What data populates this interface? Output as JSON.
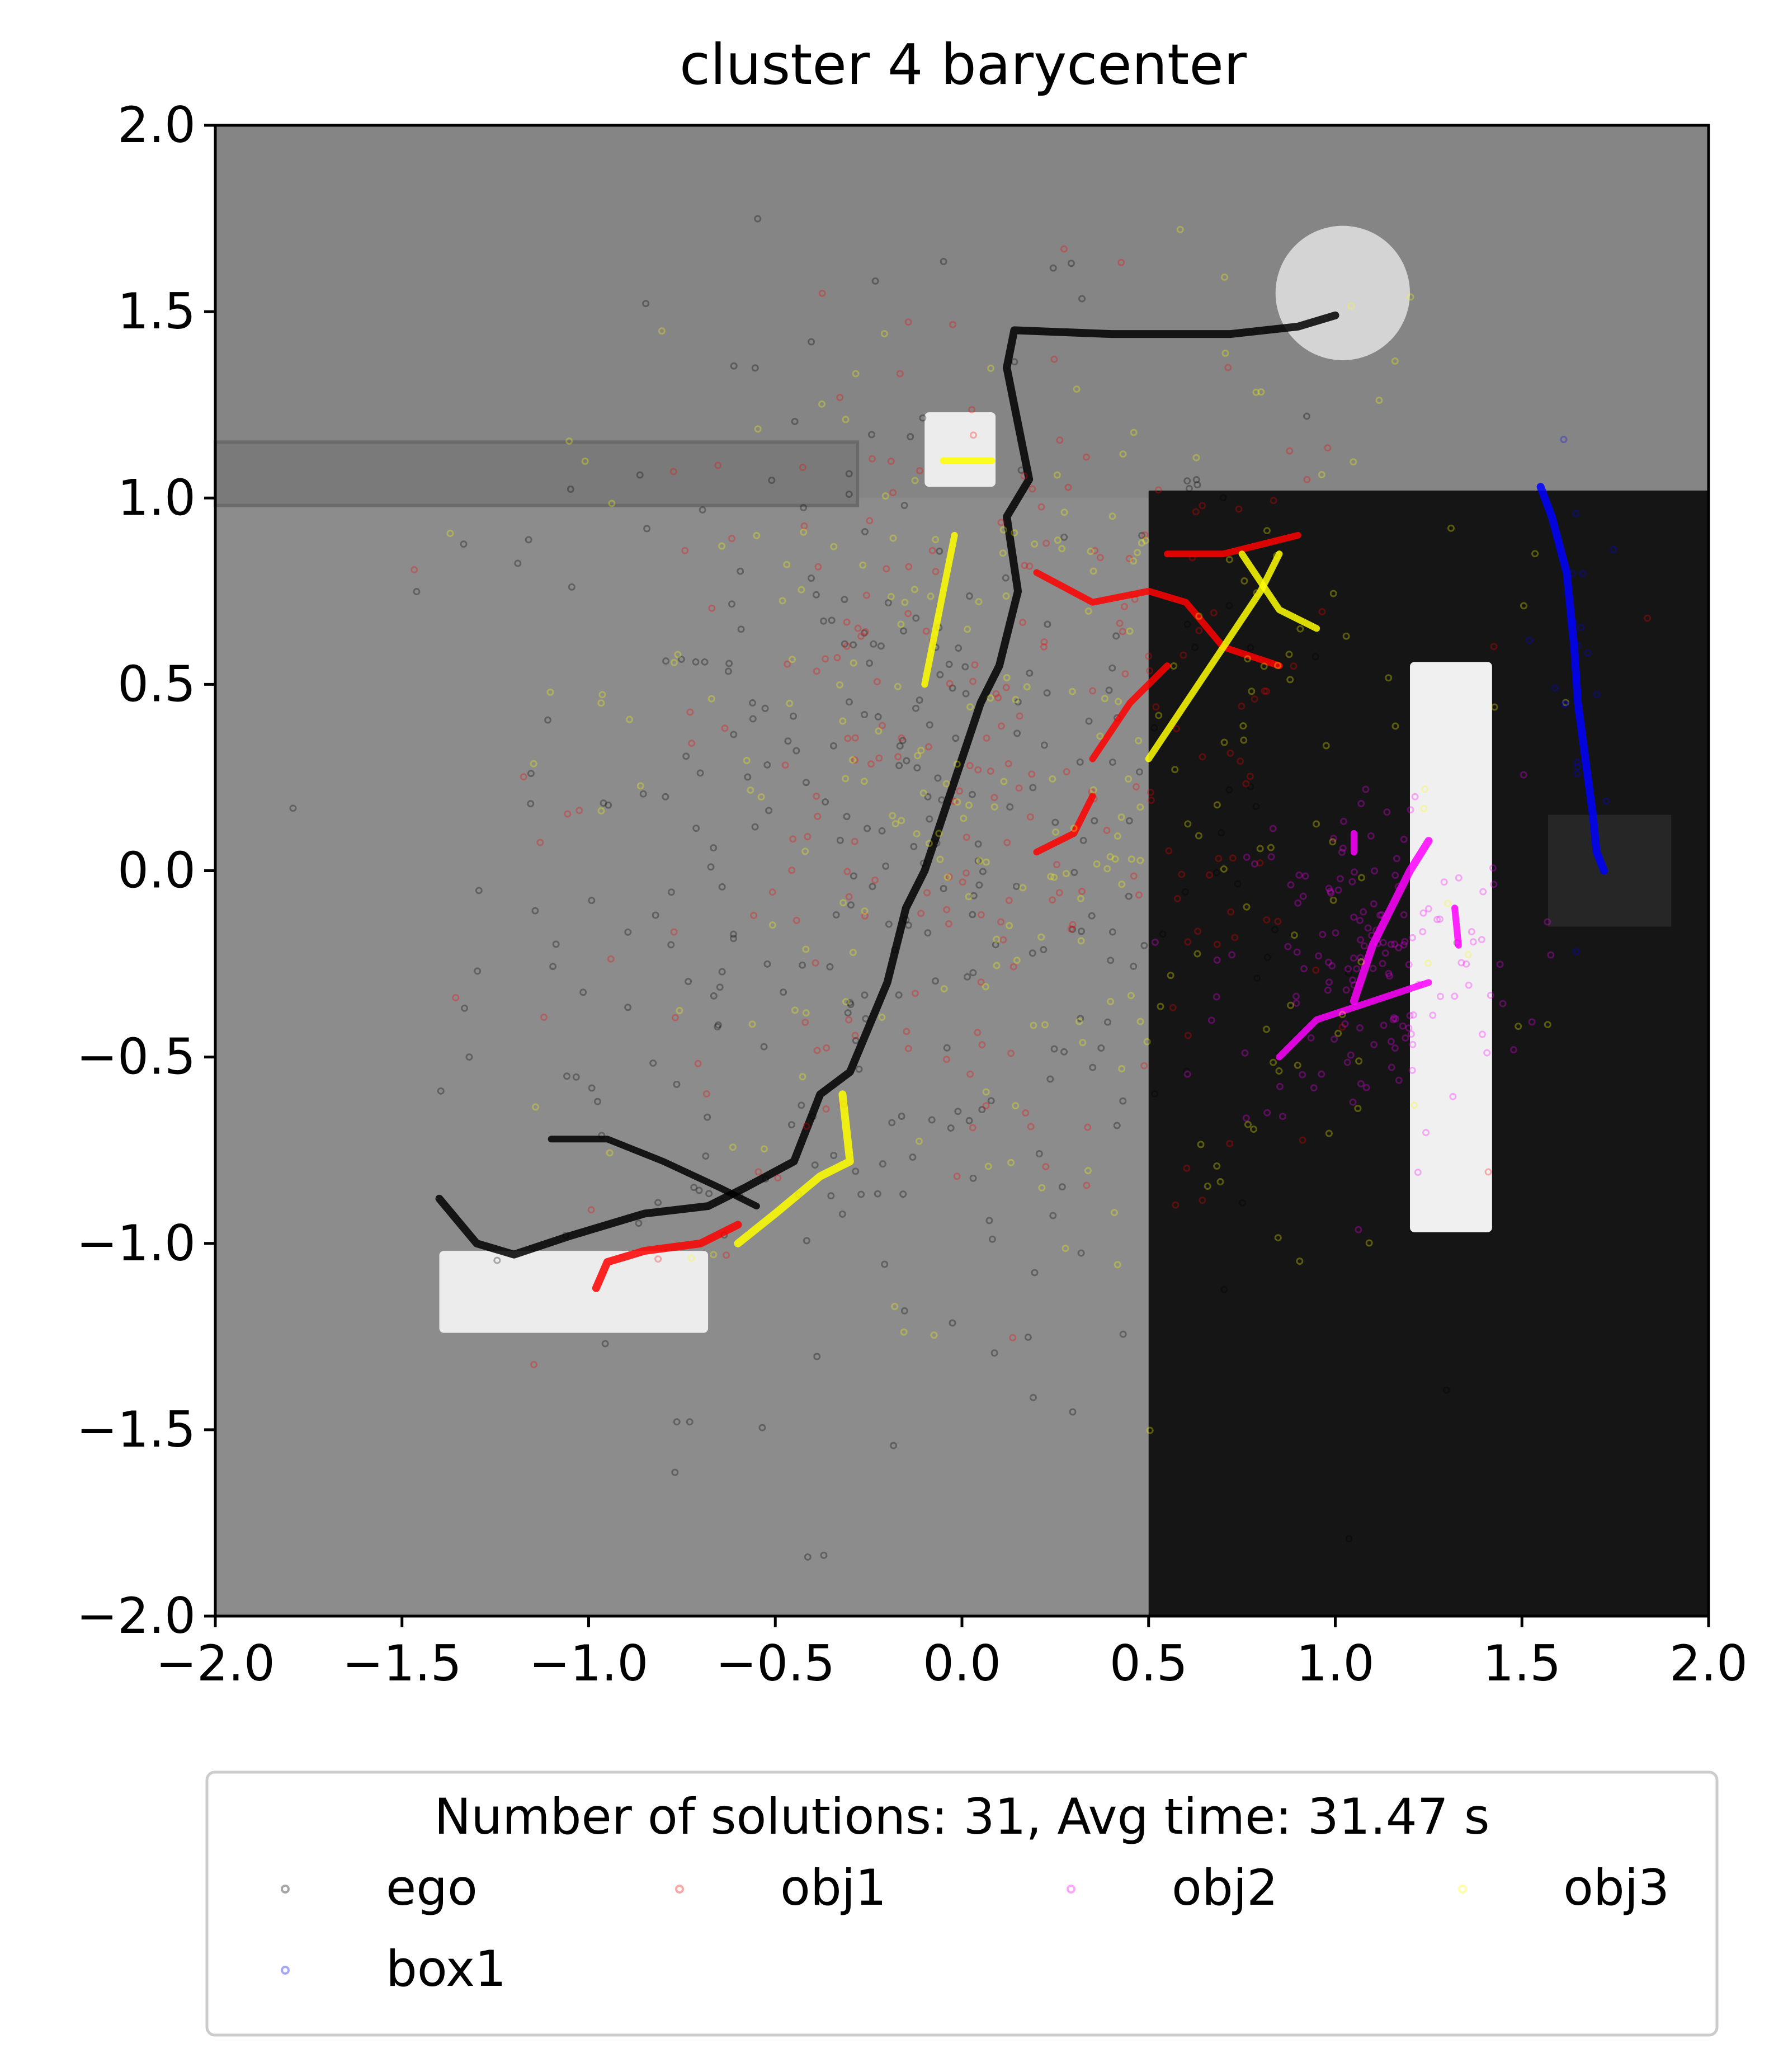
{
  "chart_data": {
    "type": "scatter",
    "title": "cluster 4 barycenter",
    "xlabel": "",
    "ylabel": "",
    "xlim": [
      -2.0,
      2.0
    ],
    "ylim": [
      -2.0,
      2.0
    ],
    "xticks": [
      "−2.0",
      "−1.5",
      "−1.0",
      "−0.5",
      "0.0",
      "0.5",
      "1.0",
      "1.5",
      "2.0"
    ],
    "yticks": [
      "2.0",
      "1.5",
      "1.0",
      "0.5",
      "0.0",
      "−0.5",
      "−1.0",
      "−1.5",
      "−2.0"
    ],
    "grid": false,
    "legend": {
      "title": "Number of solutions: 31, Avg time: 31.47 s",
      "placement": "below",
      "columns": 4
    },
    "background_scene": {
      "floor_light": "#8c8c8c",
      "floor_top": "#858585",
      "dark_region": "#151515",
      "dark_region_x": [
        0.5,
        2.0
      ],
      "dark_region_y": [
        -2.0,
        1.02
      ],
      "wall_left_x": [
        -2.0,
        -0.28
      ],
      "wall_left_y": [
        0.98,
        1.15
      ],
      "block_top_x": [
        -0.1,
        0.09
      ],
      "block_top_y": [
        1.03,
        1.23
      ],
      "block_bottom_x": [
        -1.4,
        -0.68
      ],
      "block_bottom_y": [
        -1.24,
        -1.02
      ],
      "bar_right_x": [
        1.2,
        1.42
      ],
      "bar_right_y": [
        -0.97,
        0.56
      ],
      "box_right_x": [
        1.57,
        1.9
      ],
      "box_right_y": [
        -0.15,
        0.15
      ],
      "disc_center": [
        1.02,
        1.55
      ],
      "disc_radius": 0.18
    },
    "series": [
      {
        "name": "ego",
        "color": "#000000",
        "path": [
          [
            -1.4,
            -0.88
          ],
          [
            -1.3,
            -1.0
          ],
          [
            -1.2,
            -1.03
          ],
          [
            -1.05,
            -0.98
          ],
          [
            -0.85,
            -0.92
          ],
          [
            -0.68,
            -0.9
          ],
          [
            -0.58,
            -0.85
          ],
          [
            -0.45,
            -0.78
          ],
          [
            -0.38,
            -0.6
          ],
          [
            -0.3,
            -0.54
          ],
          [
            -0.2,
            -0.3
          ],
          [
            -0.15,
            -0.1
          ],
          [
            -0.1,
            0.0
          ],
          [
            -0.05,
            0.15
          ],
          [
            0.0,
            0.3
          ],
          [
            0.05,
            0.45
          ],
          [
            0.1,
            0.55
          ],
          [
            0.15,
            0.75
          ],
          [
            0.12,
            0.95
          ],
          [
            0.18,
            1.05
          ],
          [
            0.15,
            1.2
          ],
          [
            0.12,
            1.35
          ],
          [
            0.14,
            1.45
          ],
          [
            0.4,
            1.44
          ],
          [
            0.72,
            1.44
          ],
          [
            0.9,
            1.46
          ],
          [
            1.0,
            1.49
          ]
        ],
        "extra_path": [
          [
            -1.1,
            -0.72
          ],
          [
            -0.95,
            -0.72
          ],
          [
            -0.8,
            -0.78
          ],
          [
            -0.65,
            -0.85
          ],
          [
            -0.55,
            -0.9
          ]
        ],
        "scatter": {
          "n": 320,
          "cx": -0.2,
          "cy": 0.0,
          "sx": 0.55,
          "sy": 0.7
        }
      },
      {
        "name": "obj1",
        "color": "#ff0000",
        "path": [
          [
            -0.98,
            -1.12
          ],
          [
            -0.95,
            -1.05
          ],
          [
            -0.85,
            -1.02
          ],
          [
            -0.7,
            -1.0
          ],
          [
            -0.6,
            -0.95
          ]
        ],
        "extra_path": [
          [
            0.2,
            0.8
          ],
          [
            0.35,
            0.72
          ],
          [
            0.5,
            0.75
          ],
          [
            0.6,
            0.72
          ],
          [
            0.7,
            0.6
          ],
          [
            0.85,
            0.55
          ]
        ],
        "strokes": [
          [
            [
              0.2,
              0.05
            ],
            [
              0.3,
              0.1
            ],
            [
              0.35,
              0.2
            ]
          ],
          [
            [
              0.35,
              0.3
            ],
            [
              0.45,
              0.45
            ],
            [
              0.55,
              0.55
            ]
          ],
          [
            [
              0.55,
              0.85
            ],
            [
              0.7,
              0.85
            ],
            [
              0.9,
              0.9
            ]
          ]
        ],
        "scatter": {
          "n": 240,
          "cx": 0.1,
          "cy": 0.2,
          "sx": 0.55,
          "sy": 0.6
        }
      },
      {
        "name": "obj2",
        "color": "#ff00ff",
        "path": [
          [
            1.05,
            -0.35
          ],
          [
            1.1,
            -0.2
          ],
          [
            1.15,
            -0.1
          ],
          [
            1.2,
            0.0
          ],
          [
            1.25,
            0.08
          ]
        ],
        "extra_path": [
          [
            0.85,
            -0.5
          ],
          [
            0.95,
            -0.4
          ],
          [
            1.1,
            -0.35
          ],
          [
            1.25,
            -0.3
          ]
        ],
        "strokes": [
          [
            [
              1.32,
              -0.1
            ],
            [
              1.33,
              -0.2
            ]
          ],
          [
            [
              1.05,
              0.05
            ],
            [
              1.05,
              0.1
            ]
          ]
        ],
        "scatter": {
          "n": 150,
          "cx": 1.1,
          "cy": -0.25,
          "sx": 0.2,
          "sy": 0.25
        }
      },
      {
        "name": "obj3",
        "color": "#ffff00",
        "path": [
          [
            -0.6,
            -1.0
          ],
          [
            -0.5,
            -0.92
          ],
          [
            -0.38,
            -0.82
          ],
          [
            -0.3,
            -0.78
          ],
          [
            -0.32,
            -0.6
          ]
        ],
        "extra_path": [
          [
            -0.05,
            1.1
          ],
          [
            0.0,
            1.1
          ],
          [
            0.08,
            1.1
          ]
        ],
        "strokes": [
          [
            [
              0.5,
              0.3
            ],
            [
              0.6,
              0.45
            ],
            [
              0.7,
              0.6
            ],
            [
              0.8,
              0.75
            ],
            [
              0.85,
              0.85
            ]
          ],
          [
            [
              0.75,
              0.85
            ],
            [
              0.85,
              0.7
            ],
            [
              0.95,
              0.65
            ]
          ],
          [
            [
              -0.1,
              0.5
            ],
            [
              -0.05,
              0.75
            ],
            [
              -0.02,
              0.9
            ]
          ]
        ],
        "scatter": {
          "n": 260,
          "cx": 0.2,
          "cy": 0.2,
          "sx": 0.6,
          "sy": 0.65
        }
      },
      {
        "name": "box1",
        "color": "#0000ff",
        "path": [
          [
            1.55,
            1.03
          ],
          [
            1.58,
            0.95
          ],
          [
            1.62,
            0.8
          ],
          [
            1.64,
            0.6
          ],
          [
            1.65,
            0.45
          ],
          [
            1.67,
            0.3
          ],
          [
            1.69,
            0.15
          ],
          [
            1.7,
            0.05
          ],
          [
            1.72,
            0.0
          ]
        ],
        "scatter": {
          "n": 25,
          "cx": 1.64,
          "cy": 0.5,
          "sx": 0.04,
          "sy": 0.3
        }
      }
    ]
  }
}
